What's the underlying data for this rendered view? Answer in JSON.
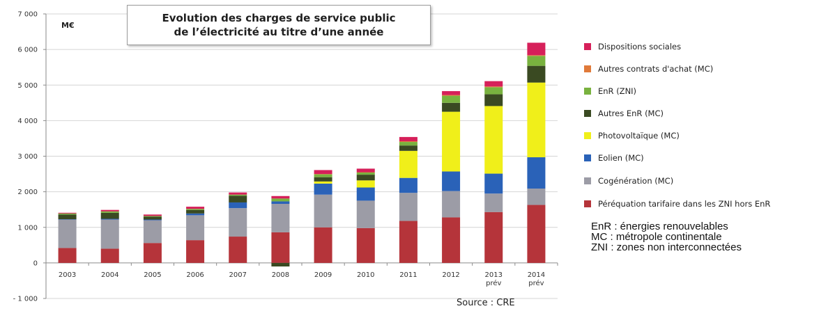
{
  "chart_data": {
    "type": "bar",
    "stacked": true,
    "title": "Evolution des charges de service public de l'électricité au titre d'une année",
    "title_lines": [
      "Evolution des charges de service public",
      "de l’électricité au titre d’une année"
    ],
    "ylabel": "M€",
    "xlabel": "",
    "ylim": [
      -1000,
      7000
    ],
    "yticks": [
      -1000,
      0,
      1000,
      2000,
      3000,
      4000,
      5000,
      6000,
      7000
    ],
    "ytick_labels": [
      "- 1 000",
      "0",
      "1 000",
      "2 000",
      "3 000",
      "4 000",
      "5 000",
      "6 000",
      "7 000"
    ],
    "grid": true,
    "legend_position": "right",
    "categories": [
      "2003",
      "2004",
      "2005",
      "2006",
      "2007",
      "2008",
      "2009",
      "2010",
      "2011",
      "2012",
      "2013",
      "2014"
    ],
    "category_sublabels": [
      "",
      "",
      "",
      "",
      "",
      "",
      "",
      "",
      "",
      "",
      "prév",
      "prév"
    ],
    "series": [
      {
        "name": "Péréquation tarifaire dans les ZNI hors EnR",
        "color": "#b5343a",
        "values": [
          420,
          400,
          560,
          640,
          740,
          860,
          1000,
          980,
          1180,
          1280,
          1430,
          1630
        ]
      },
      {
        "name": "Cogénération (MC)",
        "color": "#9c9ca6",
        "values": [
          800,
          820,
          640,
          700,
          800,
          800,
          920,
          770,
          790,
          740,
          520,
          460
        ]
      },
      {
        "name": "Eolien (MC)",
        "color": "#2a62b8",
        "values": [
          10,
          20,
          20,
          50,
          160,
          70,
          310,
          370,
          420,
          550,
          560,
          880
        ]
      },
      {
        "name": "Photovoltaïque (MC)",
        "color": "#f0ef1a",
        "values": [
          0,
          0,
          0,
          0,
          0,
          0,
          60,
          200,
          760,
          1680,
          1900,
          2100
        ]
      },
      {
        "name": "Autres EnR (MC)",
        "color": "#3a4a22",
        "values": [
          130,
          170,
          80,
          100,
          190,
          -100,
          120,
          160,
          150,
          250,
          330,
          470
        ]
      },
      {
        "name": "EnR (ZNI)",
        "color": "#79b23f",
        "values": [
          30,
          40,
          20,
          30,
          30,
          80,
          80,
          60,
          100,
          200,
          200,
          280
        ]
      },
      {
        "name": "Autres contrats d'achat (MC)",
        "color": "#e07a3a",
        "values": [
          0,
          0,
          0,
          0,
          0,
          0,
          10,
          10,
          20,
          20,
          20,
          20
        ]
      },
      {
        "name": "Dispositions sociales",
        "color": "#d6205a",
        "values": [
          20,
          40,
          40,
          60,
          60,
          70,
          110,
          100,
          120,
          110,
          150,
          350
        ]
      }
    ]
  },
  "legend": [
    {
      "label": "Dispositions sociales",
      "color": "#d6205a"
    },
    {
      "label": "Autres contrats d'achat (MC)",
      "color": "#e07a3a"
    },
    {
      "label": "EnR (ZNI)",
      "color": "#79b23f"
    },
    {
      "label": "Autres EnR (MC)",
      "color": "#3a4a22"
    },
    {
      "label": "Photovoltaïque (MC)",
      "color": "#f0ef1a"
    },
    {
      "label": "Eolien (MC)",
      "color": "#2a62b8"
    },
    {
      "label": "Cogénération (MC)",
      "color": "#9c9ca6"
    },
    {
      "label": "Péréquation tarifaire dans les ZNI hors EnR",
      "color": "#b5343a"
    }
  ],
  "notes": [
    "EnR : énergies renouvelables",
    "MC : métropole continentale",
    "ZNI : zones non interconnectées"
  ],
  "source": "Source : CRE"
}
